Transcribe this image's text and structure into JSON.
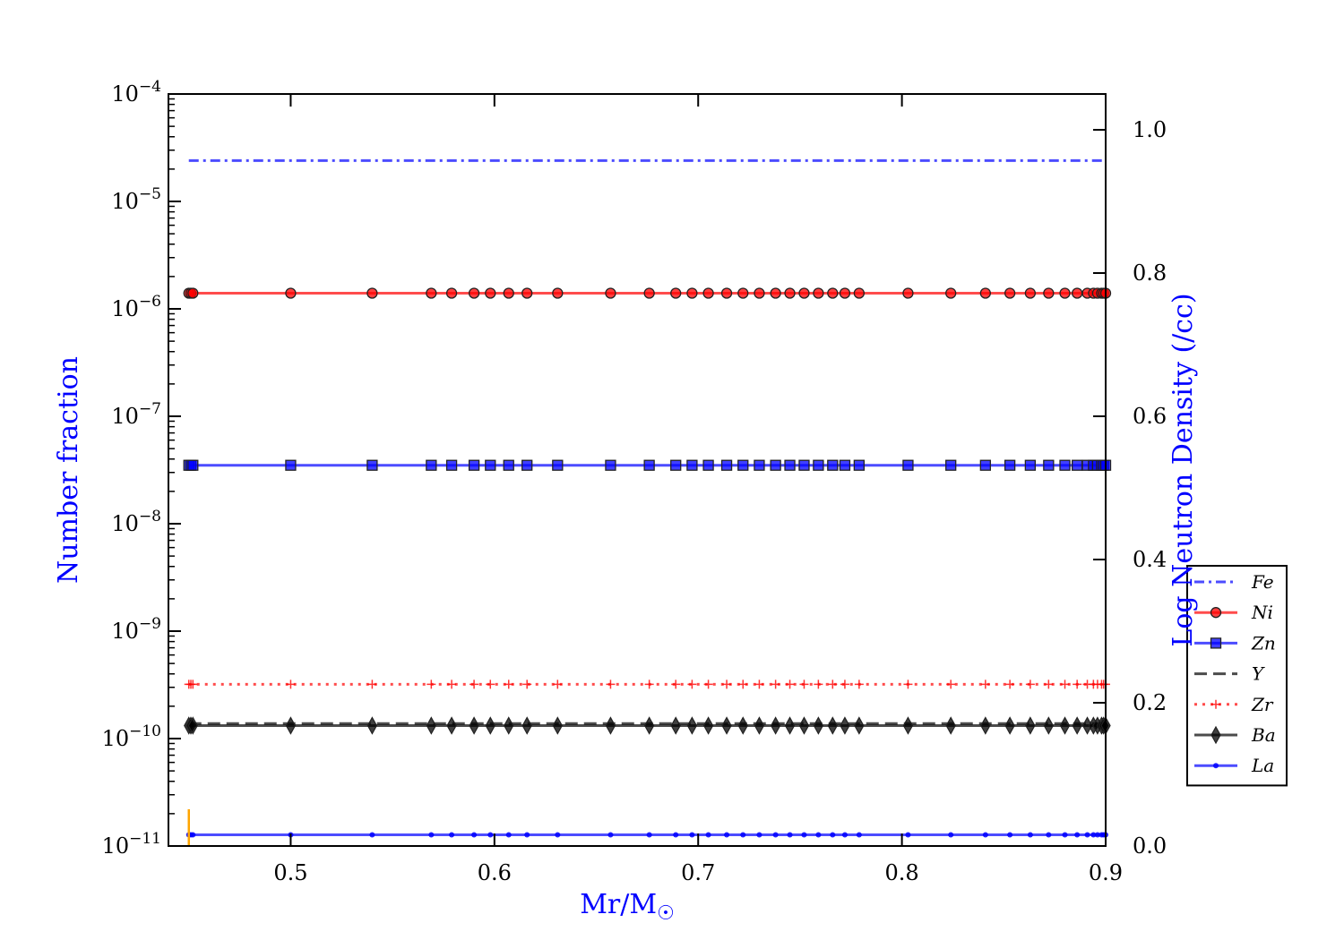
{
  "chart_data": {
    "type": "line",
    "xlabel": "Mr/M",
    "xlabel_sub": "☉",
    "ylabel": "Number fraction",
    "y2label": "Log Neutron Density (/cc)",
    "xlim": [
      0.44,
      0.9
    ],
    "ylim": [
      1e-11,
      0.0001
    ],
    "yscale": "log",
    "y2lim": [
      0.0,
      1.05
    ],
    "x_ticks": [
      0.5,
      0.6,
      0.7,
      0.8,
      0.9
    ],
    "x_tick_labels": [
      "0.5",
      "0.6",
      "0.7",
      "0.8",
      "0.9"
    ],
    "y_ticks": [
      {
        "mant": "10",
        "exp": "−4"
      },
      {
        "mant": "10",
        "exp": "−5"
      },
      {
        "mant": "10",
        "exp": "−6"
      },
      {
        "mant": "10",
        "exp": "−7"
      },
      {
        "mant": "10",
        "exp": "−8"
      },
      {
        "mant": "10",
        "exp": "−9"
      },
      {
        "mant": "10",
        "exp": "−10"
      },
      {
        "mant": "10",
        "exp": "−11"
      }
    ],
    "y2_ticks": [
      0.0,
      0.2,
      0.4,
      0.6,
      0.8,
      1.0
    ],
    "y2_tick_labels": [
      "0.0",
      "0.2",
      "0.4",
      "0.6",
      "0.8",
      "1.0"
    ],
    "grid": false,
    "legend_position": "right, outside lower",
    "x": [
      0.45,
      0.451,
      0.452,
      0.5,
      0.54,
      0.569,
      0.579,
      0.59,
      0.598,
      0.607,
      0.616,
      0.631,
      0.657,
      0.676,
      0.689,
      0.697,
      0.705,
      0.714,
      0.722,
      0.73,
      0.738,
      0.745,
      0.752,
      0.759,
      0.766,
      0.772,
      0.779,
      0.803,
      0.824,
      0.841,
      0.853,
      0.863,
      0.872,
      0.88,
      0.886,
      0.891,
      0.894,
      0.896,
      0.898,
      0.899,
      0.9
    ],
    "series": [
      {
        "name": "Fe",
        "value": 2.4e-05,
        "color": "#0000ff",
        "style": "dashdot",
        "marker": "none"
      },
      {
        "name": "Ni",
        "value": 1.4e-06,
        "color": "#ff0000",
        "style": "solid",
        "marker": "circle"
      },
      {
        "name": "Zn",
        "value": 3.5e-08,
        "color": "#0000ff",
        "style": "solid",
        "marker": "square"
      },
      {
        "name": "Y",
        "value": 1.38e-10,
        "color": "#000000",
        "style": "dashed",
        "marker": "none"
      },
      {
        "name": "Zr",
        "value": 3.2e-10,
        "color": "#ff0000",
        "style": "dotted",
        "marker": "plus"
      },
      {
        "name": "Ba",
        "value": 1.32e-10,
        "color": "#000000",
        "style": "solid",
        "marker": "diamond"
      },
      {
        "name": "La",
        "value": 1.27e-11,
        "color": "#0000ff",
        "style": "solid",
        "marker": "dot"
      }
    ],
    "annotations": [
      {
        "type": "vline",
        "x": 0.45,
        "color": "#ffa500",
        "y_from": 1e-11,
        "y_to": 2.2e-11
      }
    ]
  }
}
